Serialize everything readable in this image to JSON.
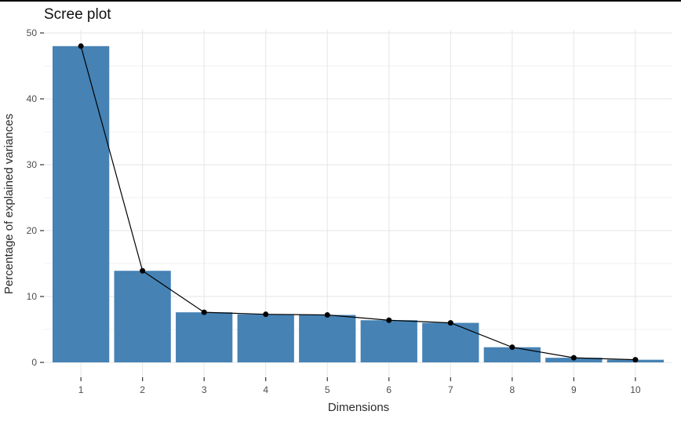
{
  "window": {
    "top_border_color": "#000000",
    "background_color": "#ffffff"
  },
  "chart_data": {
    "type": "bar",
    "overlay": "line-with-points",
    "title": "Scree plot",
    "xlabel": "Dimensions",
    "ylabel": "Percentage of explained variances",
    "categories": [
      "1",
      "2",
      "3",
      "4",
      "5",
      "6",
      "7",
      "8",
      "9",
      "10"
    ],
    "values": [
      48,
      13.9,
      7.6,
      7.3,
      7.2,
      6.4,
      6.0,
      2.3,
      0.7,
      0.4
    ],
    "series": [
      {
        "name": "percentage-of-explained-variances",
        "values": [
          48,
          13.9,
          7.6,
          7.3,
          7.2,
          6.4,
          6.0,
          2.3,
          0.7,
          0.4
        ]
      }
    ],
    "ylim": [
      0,
      50
    ],
    "y_major_ticks": [
      0,
      10,
      20,
      30,
      40,
      50
    ],
    "y_minor_gridlines": [
      5,
      15,
      25,
      35,
      45
    ],
    "grid": true,
    "legend": "none",
    "colors": {
      "bar_fill": "#4682B4",
      "line": "#000000",
      "point": "#000000",
      "major_grid": "#E5E5E5",
      "minor_grid": "#F2F2F2",
      "tick_mark": "#333333",
      "tick_label": "#4D4D4D",
      "panel_background": "#FFFFFF"
    }
  }
}
